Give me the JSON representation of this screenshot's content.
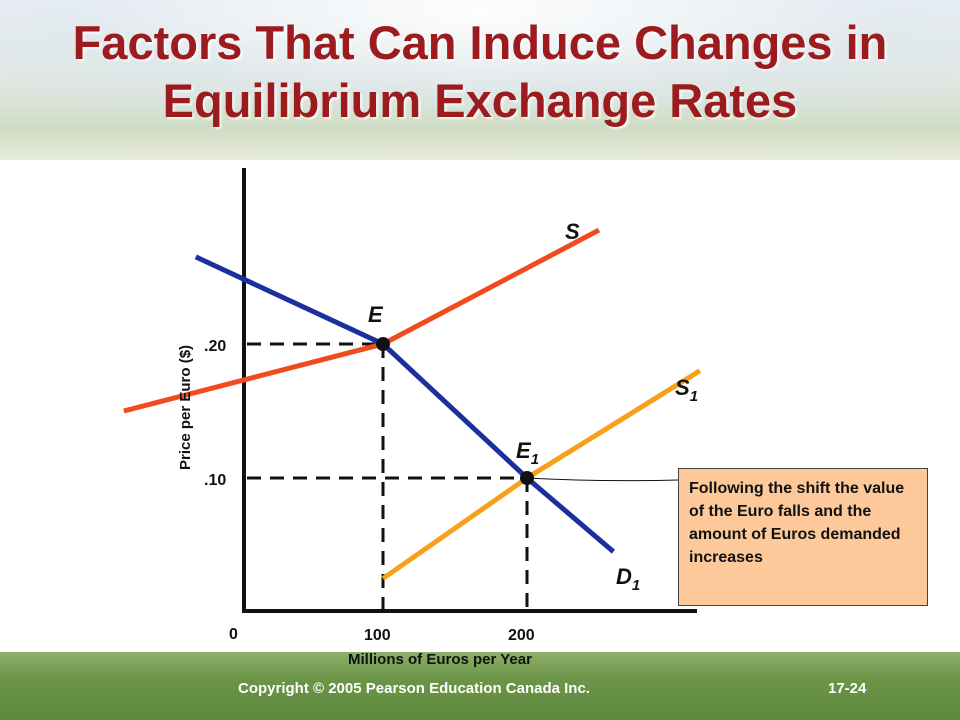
{
  "slide": {
    "title_line1": "Factors That Can Induce Changes in",
    "title_line2": "Equilibrium Exchange Rates",
    "copyright": "Copyright © 2005 Pearson Education Canada Inc.",
    "slide_number": "17-24"
  },
  "chart_data": {
    "type": "line",
    "ylabel": "Price per Euro ($)",
    "xlabel": "Millions of Euros per Year",
    "origin_label": "0",
    "x_ticks": [
      "100",
      "200"
    ],
    "y_ticks": [
      ".20",
      ".10"
    ],
    "series": [
      {
        "name": "S",
        "points": [
          [
            -80,
            0.15
          ],
          [
            100,
            0.2
          ],
          [
            250,
            0.285
          ]
        ]
      },
      {
        "name": "S1",
        "subscript": "1",
        "points": [
          [
            100,
            0.025
          ],
          [
            200,
            0.1
          ],
          [
            320,
            0.18
          ]
        ]
      },
      {
        "name": "D1",
        "subscript": "1",
        "points": [
          [
            -30,
            0.265
          ],
          [
            100,
            0.2
          ],
          [
            200,
            0.1
          ],
          [
            260,
            0.045
          ]
        ]
      }
    ],
    "points": [
      {
        "name": "E",
        "x": 100,
        "y": 0.2
      },
      {
        "name": "E1",
        "subscript": "1",
        "x": 200,
        "y": 0.1
      }
    ],
    "colors": {
      "S": "#f04a1e",
      "S1": "#f7a11a",
      "D1": "#1c2f9e"
    }
  },
  "labels": {
    "S": "S",
    "S1_base": "S",
    "S1_sub": "1",
    "D1_base": "D",
    "D1_sub": "1",
    "E": "E",
    "E1_base": "E",
    "E1_sub": "1"
  },
  "callout": {
    "text": "Following the shift the value of the Euro falls and the amount of Euros demanded increases"
  }
}
